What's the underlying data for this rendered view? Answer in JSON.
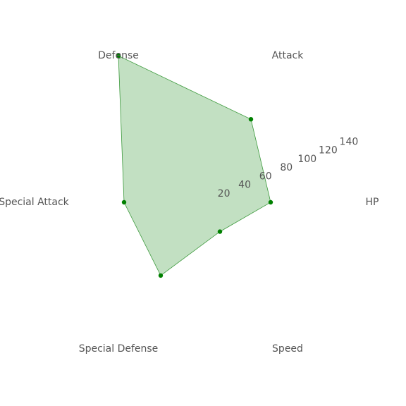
{
  "chart_data": {
    "type": "radar",
    "axes": [
      "HP",
      "Attack",
      "Defense",
      "Special Attack",
      "Special Defense",
      "Speed"
    ],
    "series": [
      {
        "values": [
          60,
          85,
          150,
          70,
          75,
          30
        ]
      }
    ],
    "radial_ticks": [
      20,
      40,
      60,
      80,
      100,
      120,
      140
    ],
    "rlim": [
      0,
      150
    ],
    "grid": false,
    "colors": {
      "fill": "#c2e0c2",
      "stroke": "#3d9a3d",
      "marker": "#008000",
      "text": "#555555"
    }
  }
}
